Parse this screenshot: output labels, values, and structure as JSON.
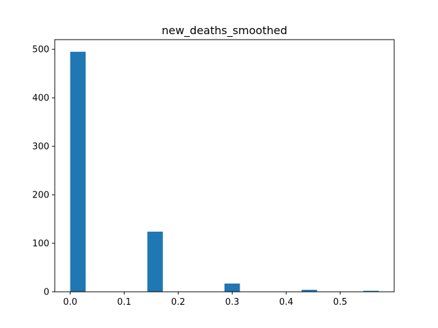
{
  "chart_data": {
    "type": "bar",
    "title": "new_deaths_smoothed",
    "xlabel": "",
    "ylabel": "",
    "xlim": [
      -0.0286,
      0.6
    ],
    "ylim": [
      0,
      520
    ],
    "xticks": [
      0.0,
      0.1,
      0.2,
      0.3,
      0.4,
      0.5
    ],
    "xtick_labels": [
      "0.0",
      "0.1",
      "0.2",
      "0.3",
      "0.4",
      "0.5"
    ],
    "yticks": [
      0,
      100,
      200,
      300,
      400,
      500
    ],
    "ytick_labels": [
      "0",
      "100",
      "200",
      "300",
      "400",
      "500"
    ],
    "bin_width": 0.0286,
    "bins": [
      {
        "start": 0.0,
        "value": 495
      },
      {
        "start": 0.0286,
        "value": 0
      },
      {
        "start": 0.0571,
        "value": 0
      },
      {
        "start": 0.0857,
        "value": 0
      },
      {
        "start": 0.1143,
        "value": 0
      },
      {
        "start": 0.1429,
        "value": 124
      },
      {
        "start": 0.1714,
        "value": 0
      },
      {
        "start": 0.2,
        "value": 0
      },
      {
        "start": 0.2286,
        "value": 0
      },
      {
        "start": 0.2571,
        "value": 0
      },
      {
        "start": 0.2857,
        "value": 17
      },
      {
        "start": 0.3143,
        "value": 0
      },
      {
        "start": 0.3429,
        "value": 0
      },
      {
        "start": 0.3714,
        "value": 0
      },
      {
        "start": 0.4,
        "value": 0
      },
      {
        "start": 0.4286,
        "value": 4
      },
      {
        "start": 0.4571,
        "value": 0
      },
      {
        "start": 0.4857,
        "value": 0
      },
      {
        "start": 0.5143,
        "value": 0
      },
      {
        "start": 0.5429,
        "value": 2
      }
    ],
    "bar_color": "#1f77b4",
    "grid": false,
    "legend": "none"
  }
}
